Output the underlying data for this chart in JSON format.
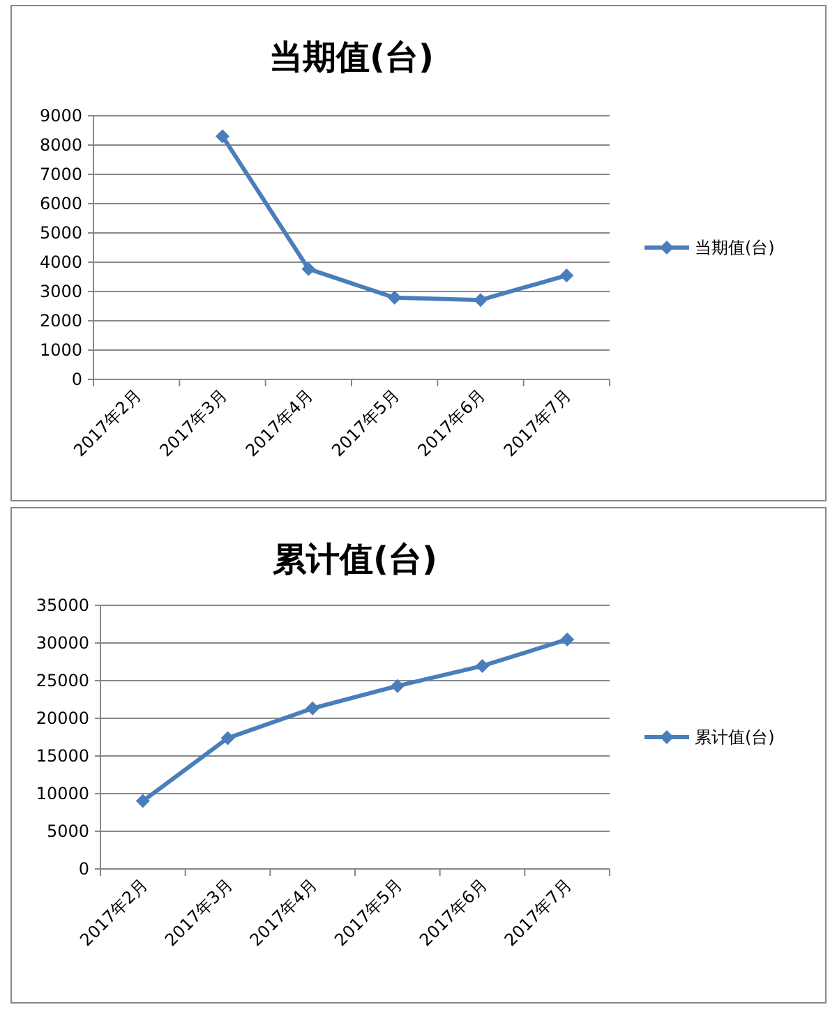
{
  "chart_data": [
    {
      "type": "line",
      "title": "当期值(台)",
      "categories": [
        "2017年2月",
        "2017年3月",
        "2017年4月",
        "2017年5月",
        "2017年6月",
        "2017年7月"
      ],
      "series": [
        {
          "name": "当期值(台)",
          "color": "#4a7ebb",
          "values": [
            null,
            8300,
            3770,
            2790,
            2710,
            3550
          ]
        }
      ],
      "ylim": [
        0,
        9000
      ],
      "yticks": [
        0,
        1000,
        2000,
        3000,
        4000,
        5000,
        6000,
        7000,
        8000,
        9000
      ],
      "grid": "y",
      "legend": "right",
      "marker": "diamond"
    },
    {
      "type": "line",
      "title": "累计值(台)",
      "categories": [
        "2017年2月",
        "2017年3月",
        "2017年4月",
        "2017年5月",
        "2017年6月",
        "2017年7月"
      ],
      "series": [
        {
          "name": "累计值(台)",
          "color": "#4a7ebb",
          "values": [
            9020,
            17370,
            21320,
            24290,
            26950,
            30470
          ]
        }
      ],
      "ylim": [
        0,
        35000
      ],
      "yticks": [
        0,
        5000,
        10000,
        15000,
        20000,
        25000,
        30000,
        35000
      ],
      "grid": "y",
      "legend": "right",
      "marker": "diamond"
    }
  ]
}
